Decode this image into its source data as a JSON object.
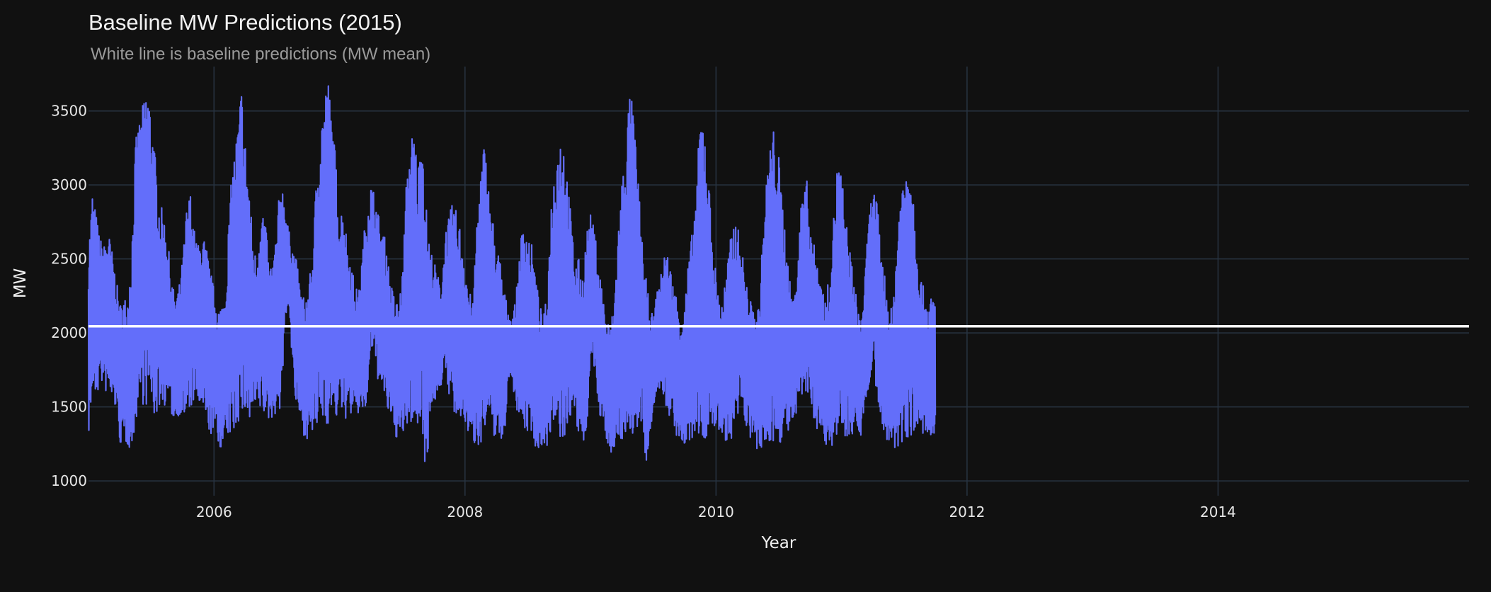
{
  "chart_data": {
    "type": "line",
    "title": "Baseline MW Predictions (2015)",
    "subtitle": "White line is baseline predictions (MW mean)",
    "xlabel": "Year",
    "ylabel": "MW",
    "xlim": [
      2005.0,
      2016.0
    ],
    "ylim": [
      900,
      3800
    ],
    "grid": true,
    "x_ticks": [
      2006,
      2008,
      2010,
      2012,
      2014
    ],
    "x_tick_labels": [
      "2006",
      "2008",
      "2010",
      "2012",
      "2014"
    ],
    "y_ticks": [
      1000,
      1500,
      2000,
      2500,
      3000,
      3500
    ],
    "y_tick_labels": [
      "1000",
      "1500",
      "2000",
      "2500",
      "3000",
      "3500"
    ],
    "x_step_years": 0.03125,
    "series": [
      {
        "color": "#636efa",
        "note": "hourly load, summarized as periodic high/low envelope pairs (upper, lower) starting at 2005.0",
        "envelope": [
          [
            2580,
            1320
          ],
          [
            2960,
            1600
          ],
          [
            2800,
            1550
          ],
          [
            2640,
            1680
          ],
          [
            2600,
            1600
          ],
          [
            2700,
            1580
          ],
          [
            2560,
            1520
          ],
          [
            2380,
            1480
          ],
          [
            2200,
            1240
          ],
          [
            2240,
            1260
          ],
          [
            2250,
            1230
          ],
          [
            2600,
            1200
          ],
          [
            3300,
            1400
          ],
          [
            3450,
            1500
          ],
          [
            3560,
            1520
          ],
          [
            3720,
            1480
          ],
          [
            3500,
            1480
          ],
          [
            3200,
            1400
          ],
          [
            2900,
            1500
          ],
          [
            2820,
            1480
          ],
          [
            2700,
            1560
          ],
          [
            2400,
            1450
          ],
          [
            2250,
            1380
          ],
          [
            2300,
            1450
          ],
          [
            2500,
            1430
          ],
          [
            2850,
            1380
          ],
          [
            2960,
            1480
          ],
          [
            2700,
            1540
          ],
          [
            2600,
            1500
          ],
          [
            2680,
            1440
          ],
          [
            2600,
            1380
          ],
          [
            2440,
            1300
          ],
          [
            2300,
            1350
          ],
          [
            2180,
            1230
          ],
          [
            2200,
            1220
          ],
          [
            2320,
            1260
          ],
          [
            2900,
            1300
          ],
          [
            3200,
            1300
          ],
          [
            3400,
            1390
          ],
          [
            3690,
            1400
          ],
          [
            3300,
            1450
          ],
          [
            3000,
            1350
          ],
          [
            2600,
            1460
          ],
          [
            2500,
            1470
          ],
          [
            2900,
            1460
          ],
          [
            2800,
            1420
          ],
          [
            2450,
            1400
          ],
          [
            2500,
            1430
          ],
          [
            2700,
            1470
          ],
          [
            3100,
            1470
          ],
          [
            2900,
            2000
          ],
          [
            2700,
            2230
          ],
          [
            2600,
            1700
          ],
          [
            2500,
            1460
          ],
          [
            2300,
            1400
          ],
          [
            2240,
            1290
          ],
          [
            2300,
            1280
          ],
          [
            2500,
            1300
          ],
          [
            3000,
            1330
          ],
          [
            3400,
            1360
          ],
          [
            3600,
            1390
          ],
          [
            3750,
            1370
          ],
          [
            3500,
            1400
          ],
          [
            3200,
            1400
          ],
          [
            2800,
            1490
          ],
          [
            2900,
            1400
          ],
          [
            2600,
            1430
          ],
          [
            2500,
            1450
          ],
          [
            2300,
            1440
          ],
          [
            2300,
            1450
          ],
          [
            2600,
            1460
          ],
          [
            2900,
            1460
          ],
          [
            3020,
            1900
          ],
          [
            2950,
            1750
          ],
          [
            2800,
            1650
          ],
          [
            2700,
            1550
          ],
          [
            2600,
            1480
          ],
          [
            2350,
            1400
          ],
          [
            2250,
            1300
          ],
          [
            2200,
            1280
          ],
          [
            2400,
            1290
          ],
          [
            3000,
            1330
          ],
          [
            3300,
            1380
          ],
          [
            3400,
            1350
          ],
          [
            3100,
            1330
          ],
          [
            3490,
            1380
          ],
          [
            2900,
            980
          ],
          [
            2600,
            1450
          ],
          [
            2500,
            1500
          ],
          [
            2400,
            1600
          ],
          [
            2300,
            1650
          ],
          [
            2700,
            1700
          ],
          [
            2800,
            1560
          ],
          [
            2900,
            1450
          ],
          [
            2800,
            1300
          ],
          [
            2700,
            1400
          ],
          [
            2500,
            1380
          ],
          [
            2300,
            1290
          ],
          [
            2200,
            1250
          ],
          [
            2800,
            1230
          ],
          [
            3100,
            1260
          ],
          [
            3320,
            1300
          ],
          [
            3000,
            1390
          ],
          [
            2800,
            1260
          ],
          [
            2600,
            1330
          ],
          [
            2500,
            1240
          ],
          [
            2300,
            1300
          ],
          [
            2150,
            1700
          ],
          [
            2100,
            1650
          ],
          [
            2250,
            1500
          ],
          [
            2600,
            1380
          ],
          [
            2780,
            1340
          ],
          [
            2700,
            1300
          ],
          [
            2600,
            1340
          ],
          [
            2400,
            1200
          ],
          [
            2200,
            1200
          ],
          [
            2100,
            1260
          ],
          [
            2300,
            1230
          ],
          [
            2900,
            1280
          ],
          [
            3200,
            1300
          ],
          [
            3350,
            1280
          ],
          [
            3380,
            1210
          ],
          [
            3100,
            1300
          ],
          [
            2800,
            1460
          ],
          [
            2500,
            1370
          ],
          [
            2500,
            1300
          ],
          [
            2400,
            1200
          ],
          [
            2700,
            1280
          ],
          [
            2800,
            1900
          ],
          [
            2700,
            1750
          ],
          [
            2500,
            1420
          ],
          [
            2300,
            1380
          ],
          [
            2100,
            1280
          ],
          [
            2050,
            1190
          ],
          [
            2200,
            1200
          ],
          [
            2700,
            1250
          ],
          [
            3050,
            1260
          ],
          [
            3300,
            1280
          ],
          [
            3650,
            1310
          ],
          [
            3500,
            1300
          ],
          [
            3100,
            1200
          ],
          [
            2700,
            1400
          ],
          [
            2400,
            1010
          ],
          [
            2200,
            1300
          ],
          [
            2100,
            1500
          ],
          [
            2300,
            1620
          ],
          [
            2400,
            1560
          ],
          [
            2600,
            1500
          ],
          [
            2500,
            1430
          ],
          [
            2350,
            1400
          ],
          [
            2250,
            1280
          ],
          [
            2100,
            1240
          ],
          [
            2200,
            1220
          ],
          [
            2500,
            1250
          ],
          [
            2700,
            1260
          ],
          [
            3000,
            1280
          ],
          [
            3500,
            1300
          ],
          [
            3480,
            1240
          ],
          [
            3100,
            1290
          ],
          [
            2700,
            1300
          ],
          [
            2400,
            1380
          ],
          [
            2200,
            1300
          ],
          [
            2300,
            1280
          ],
          [
            2500,
            1250
          ],
          [
            2700,
            1200
          ],
          [
            2800,
            1300
          ],
          [
            2650,
            1500
          ],
          [
            2500,
            1400
          ],
          [
            2300,
            1350
          ],
          [
            2200,
            1250
          ],
          [
            2150,
            1200
          ],
          [
            2200,
            1170
          ],
          [
            2700,
            1200
          ],
          [
            3100,
            1250
          ],
          [
            3350,
            1250
          ],
          [
            3400,
            1200
          ],
          [
            3200,
            1250
          ],
          [
            2900,
            1280
          ],
          [
            2600,
            1300
          ],
          [
            2300,
            1360
          ],
          [
            2250,
            1350
          ],
          [
            2600,
            1520
          ],
          [
            3000,
            1550
          ],
          [
            3080,
            1540
          ],
          [
            2800,
            1500
          ],
          [
            2600,
            1400
          ],
          [
            2500,
            1330
          ],
          [
            2350,
            1240
          ],
          [
            2200,
            1220
          ],
          [
            2450,
            1220
          ],
          [
            2800,
            1260
          ],
          [
            3200,
            1270
          ],
          [
            3100,
            1290
          ],
          [
            2800,
            1300
          ],
          [
            2600,
            1310
          ],
          [
            2400,
            1300
          ],
          [
            2200,
            1350
          ],
          [
            2100,
            1300
          ],
          [
            2400,
            1500
          ],
          [
            2800,
            1560
          ],
          [
            3000,
            1900
          ],
          [
            2900,
            1500
          ],
          [
            2600,
            1400
          ],
          [
            2400,
            1280
          ],
          [
            2200,
            1200
          ],
          [
            2150,
            1200
          ],
          [
            2600,
            1200
          ],
          [
            3000,
            1230
          ],
          [
            3080,
            1270
          ],
          [
            3270,
            1300
          ],
          [
            3100,
            1300
          ],
          [
            2700,
            1320
          ],
          [
            2400,
            1320
          ],
          [
            2300,
            1300
          ],
          [
            2200,
            1270
          ],
          [
            2250,
            1260
          ]
        ]
      },
      {
        "color": "#ffffff",
        "note": "baseline prediction (MW mean)",
        "x": [
          2005.0,
          2016.0
        ],
        "values": [
          2045,
          2045
        ]
      }
    ]
  }
}
